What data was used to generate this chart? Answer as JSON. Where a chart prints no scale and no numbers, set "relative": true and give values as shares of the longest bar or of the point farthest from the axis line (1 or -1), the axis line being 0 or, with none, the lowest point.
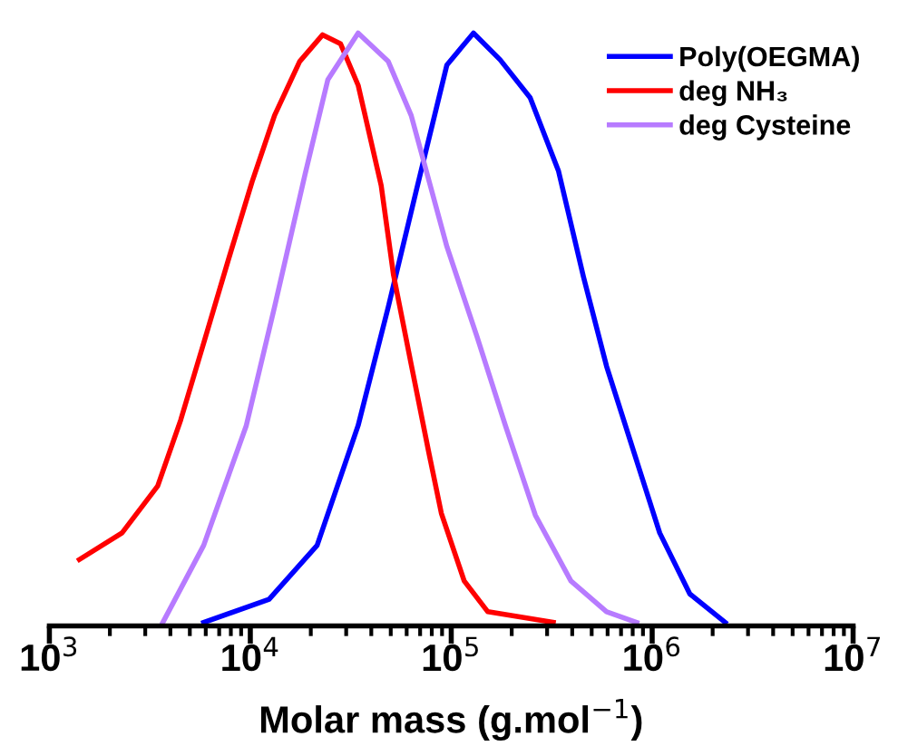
{
  "chart_data": {
    "type": "line",
    "relative": true,
    "log": "x",
    "xlabel": "Molar mass (g.mol$^{−1}$)",
    "legend": "top right",
    "grid": false,
    "tick_labels": "x",
    "line_style": "solid",
    "marker": "none",
    "xlim": [
      1000,
      10000000
    ],
    "xticks": [
      {
        "value": 1000,
        "label": "10$^{3}$"
      },
      {
        "value": 2000,
        "label": null
      },
      {
        "value": 3000,
        "label": null
      },
      {
        "value": 4000,
        "label": null
      },
      {
        "value": 5000,
        "label": null
      },
      {
        "value": 6000,
        "label": null
      },
      {
        "value": 7000,
        "label": null
      },
      {
        "value": 8000,
        "label": null
      },
      {
        "value": 9000,
        "label": null
      },
      {
        "value": 10000,
        "label": "10$^{4}$"
      },
      {
        "value": 20000,
        "label": null
      },
      {
        "value": 30000,
        "label": null
      },
      {
        "value": 40000,
        "label": null
      },
      {
        "value": 50000,
        "label": null
      },
      {
        "value": 60000,
        "label": null
      },
      {
        "value": 70000,
        "label": null
      },
      {
        "value": 80000,
        "label": null
      },
      {
        "value": 90000,
        "label": null
      },
      {
        "value": 100000,
        "label": "10$^{5}$"
      },
      {
        "value": 200000,
        "label": null
      },
      {
        "value": 300000,
        "label": null
      },
      {
        "value": 400000,
        "label": null
      },
      {
        "value": 500000,
        "label": null
      },
      {
        "value": 600000,
        "label": null
      },
      {
        "value": 700000,
        "label": null
      },
      {
        "value": 800000,
        "label": null
      },
      {
        "value": 900000,
        "label": null
      },
      {
        "value": 1000000,
        "label": "10$^{6}$"
      },
      {
        "value": 2000000,
        "label": null
      },
      {
        "value": 3000000,
        "label": null
      },
      {
        "value": 4000000,
        "label": null
      },
      {
        "value": 5000000,
        "label": null
      },
      {
        "value": 6000000,
        "label": null
      },
      {
        "value": 7000000,
        "label": null
      },
      {
        "value": 8000000,
        "label": null
      },
      {
        "value": 9000000,
        "label": null
      },
      {
        "value": 10000000,
        "label": "10$^{7}$"
      }
    ],
    "series": [
      {
        "name": "Poly(OEGMA)",
        "color": "#0000ff",
        "x": [
          5860,
          12400,
          21500,
          34400,
          48600,
          67300,
          95100,
          129000,
          175000,
          247000,
          342000,
          455000,
          593000,
          838000,
          1090000,
          1540000,
          2310000
        ],
        "values": [
          0.006,
          0.045,
          0.136,
          0.338,
          0.538,
          0.737,
          0.946,
          1.0,
          0.955,
          0.891,
          0.767,
          0.589,
          0.438,
          0.278,
          0.157,
          0.054,
          0.006
        ]
      },
      {
        "name": "deg NH₃",
        "color": "#ff0000",
        "x": [
          1410,
          2300,
          3460,
          4500,
          5860,
          7800,
          10200,
          13200,
          17600,
          22900,
          28100,
          34400,
          44800,
          51600,
          63200,
          77600,
          89300,
          116000,
          152000,
          322000
        ],
        "values": [
          0.112,
          0.157,
          0.236,
          0.347,
          0.477,
          0.619,
          0.749,
          0.861,
          0.952,
          0.997,
          0.982,
          0.912,
          0.743,
          0.592,
          0.441,
          0.29,
          0.19,
          0.076,
          0.024,
          0.006
        ]
      },
      {
        "name": "deg Cysteine",
        "color": "#b77bff",
        "x": [
          3670,
          5860,
          9550,
          13200,
          18700,
          24300,
          34400,
          48600,
          63200,
          95100,
          134000,
          186000,
          262000,
          394000,
          593000,
          838000
        ],
        "values": [
          0.006,
          0.136,
          0.338,
          0.538,
          0.761,
          0.921,
          1.0,
          0.952,
          0.861,
          0.64,
          0.489,
          0.338,
          0.187,
          0.076,
          0.024,
          0.006
        ]
      }
    ]
  }
}
